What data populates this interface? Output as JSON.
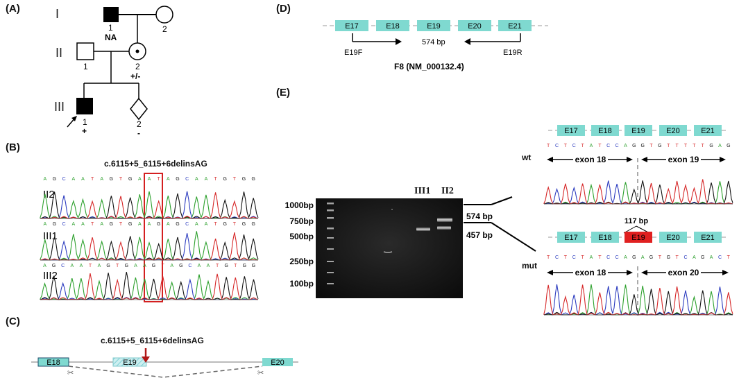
{
  "panelA": {
    "label": "(A)",
    "gen": [
      "I",
      "II",
      "III"
    ],
    "ids": {
      "I1": "1",
      "I2": "2",
      "II1": "1",
      "II2": "2",
      "III1": "1",
      "III2": "2"
    },
    "notes": {
      "I1": "NA",
      "II2": "+/-",
      "III1": "+",
      "III2": "-"
    }
  },
  "panelB": {
    "label": "(B)",
    "mutation": "c.6115+5_6115+6delinsAG",
    "tracks": [
      {
        "name": "II2",
        "seq": [
          "A",
          "G",
          "C",
          "A",
          "A",
          "T",
          "A",
          "G",
          "T",
          "G",
          "A",
          "A",
          "T",
          "A",
          "G",
          "C",
          "A",
          "A",
          "T",
          "G",
          "T",
          "G",
          "G"
        ]
      },
      {
        "name": "III1",
        "seq": [
          "A",
          "G",
          "C",
          "A",
          "A",
          "T",
          "A",
          "G",
          "T",
          "G",
          "A",
          "A",
          "G",
          "A",
          "G",
          "C",
          "A",
          "A",
          "T",
          "G",
          "T",
          "G",
          "G"
        ]
      },
      {
        "name": "III2",
        "seq": [
          "A",
          "G",
          "C",
          "A",
          "A",
          "T",
          "A",
          "G",
          "T",
          "G",
          "A",
          "A",
          "G",
          "T",
          "A",
          "G",
          "C",
          "A",
          "A",
          "T",
          "G",
          "T",
          "G",
          "G"
        ]
      }
    ]
  },
  "panelC": {
    "label": "(C)",
    "mutation": "c.6115+5_6115+6delinsAG",
    "exons": [
      "E18",
      "E19",
      "E20"
    ]
  },
  "panelD": {
    "label": "(D)",
    "exons": [
      "E17",
      "E18",
      "E19",
      "E20",
      "E21"
    ],
    "primerF": "E19F",
    "primerR": "E19R",
    "product": "574 bp",
    "gene": "F8 (NM_000132.4)"
  },
  "panelE": {
    "label": "(E)",
    "ladder": [
      "1000bp",
      "750bp",
      "500bp",
      "250bp",
      "100bp"
    ],
    "lanes": [
      "III1",
      "II2"
    ],
    "bands": [
      "574 bp",
      "457 bp"
    ],
    "wt": {
      "label": "wt",
      "exons": [
        "E17",
        "E18",
        "E19",
        "E20",
        "E21"
      ],
      "seq": [
        "T",
        "C",
        "T",
        "C",
        "T",
        "A",
        "T",
        "C",
        "C",
        "A",
        "G",
        "G",
        "T",
        "G",
        "T",
        "T",
        "T",
        "T",
        "T",
        "G",
        "A",
        "G"
      ],
      "left": "exon 18",
      "right": "exon 19"
    },
    "mut": {
      "label": "mut",
      "exons": [
        "E17",
        "E18",
        "E19",
        "E20",
        "E21"
      ],
      "skip": "117 bp",
      "seq": [
        "T",
        "C",
        "T",
        "C",
        "T",
        "A",
        "T",
        "C",
        "C",
        "A",
        "G",
        "A",
        "G",
        "T",
        "G",
        "T",
        "C",
        "A",
        "G",
        "A",
        "C",
        "T"
      ],
      "left": "exon 18",
      "right": "exon 20"
    }
  },
  "colors": {
    "exon": "#7fd9d0",
    "exon_deleted": "#e02020",
    "box_highlight": "#d42020",
    "arrow_red": "#b01818",
    "base_A": "#2ca02c",
    "base_C": "#2b3bbf",
    "base_G": "#111111",
    "base_T": "#d62728"
  }
}
